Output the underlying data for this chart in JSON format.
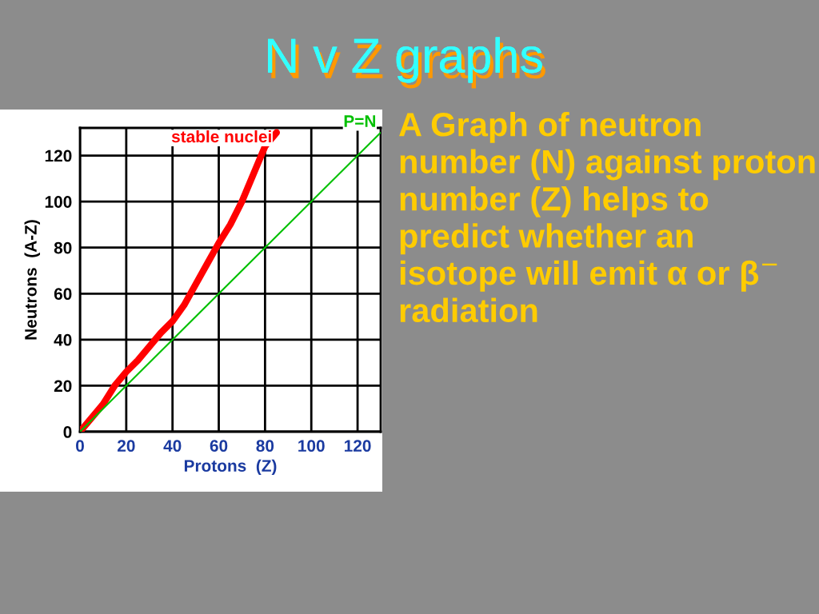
{
  "chart_data": {
    "type": "line",
    "title": "N v Z graphs",
    "xlabel": "Protons  (Z)",
    "ylabel": "Neutrons  (A-Z)",
    "series": [
      {
        "name": "stable nuclei",
        "color": "#ff0000",
        "x": [
          0,
          5,
          10,
          15,
          20,
          25,
          30,
          35,
          40,
          45,
          50,
          55,
          60,
          65,
          70,
          75,
          80,
          85
        ],
        "values": [
          0,
          6,
          12,
          20,
          26,
          31,
          37,
          43,
          48,
          55,
          64,
          73,
          82,
          90,
          100,
          112,
          124,
          130
        ]
      },
      {
        "name": "P=N",
        "color": "#00c000",
        "x": [
          0,
          130
        ],
        "values": [
          0,
          130
        ]
      }
    ],
    "xlim": [
      0,
      130
    ],
    "ylim": [
      0,
      132
    ],
    "xticks": [
      0,
      20,
      40,
      60,
      80,
      100,
      120
    ],
    "yticks": [
      0,
      20,
      40,
      60,
      80,
      100,
      120
    ],
    "grid": true,
    "marker": "none",
    "line_style": "solid",
    "annotations": [
      "A Graph of neutron number (N) against proton number (Z) helps to predict whether an isotope will emit α or β$^{−}$ radiation"
    ]
  }
}
